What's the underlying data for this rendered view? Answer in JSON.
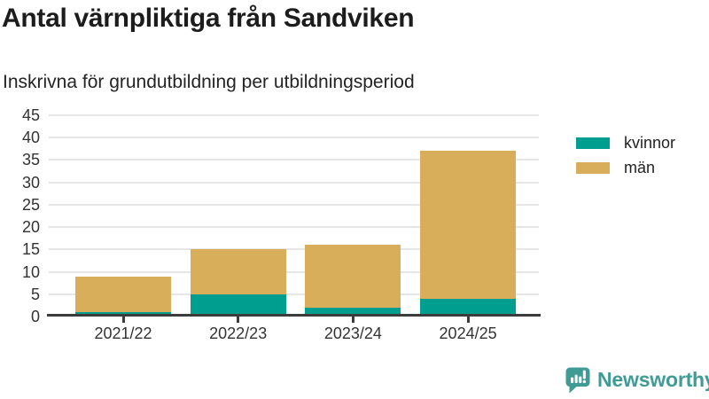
{
  "header": {
    "title": "Antal värnpliktiga från Sandviken",
    "subtitle": "Inskrivna för grundutbildning per utbildningsperiod"
  },
  "chart_data": {
    "type": "bar",
    "stacked": true,
    "title": "Antal värnpliktiga från Sandviken",
    "subtitle": "Inskrivna för grundutbildning per utbildningsperiod",
    "categories": [
      "2021/22",
      "2022/23",
      "2023/24",
      "2024/25"
    ],
    "series": [
      {
        "name": "kvinnor",
        "color": "#009e8f",
        "values": [
          1,
          5,
          2,
          4
        ]
      },
      {
        "name": "män",
        "color": "#d9ae5a",
        "values": [
          8,
          10,
          14,
          33
        ]
      }
    ],
    "stacked_totals": [
      9,
      15,
      16,
      37
    ],
    "ylim": [
      0,
      45
    ],
    "ytick_step": 5,
    "ytick_labels": [
      "0",
      "5",
      "10",
      "15",
      "20",
      "25",
      "30",
      "35",
      "40",
      "45"
    ],
    "grid": true,
    "legend_position": "right",
    "axis_color": "#3c3c3c",
    "gridline_color": "#e6e6e6",
    "label_color": "#333333"
  },
  "branding": {
    "logo_text": "Newsworthy",
    "logo_color": "#3f9c94",
    "logo_icon": "speech-bubble-bar-chart-icon"
  }
}
